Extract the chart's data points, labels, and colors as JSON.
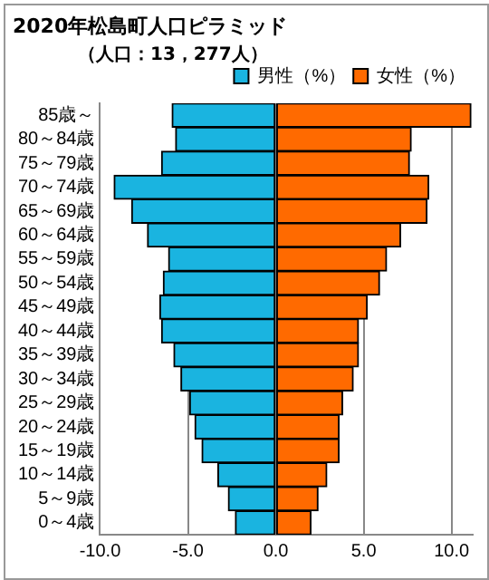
{
  "chart_data": {
    "type": "bar",
    "title": "2020年松島町人口ピラミッド",
    "subtitle": "（人口：13，277人）",
    "orientation": "horizontal",
    "stacked": true,
    "categories": [
      "85歳～",
      "80～84歳",
      "75～79歳",
      "70～74歳",
      "65～69歳",
      "60～64歳",
      "55～59歳",
      "50～54歳",
      "45～49歳",
      "40～44歳",
      "35～39歳",
      "30～34歳",
      "25～29歳",
      "20～24歳",
      "15～19歳",
      "10～14歳",
      "5～9歳",
      "0～4歳"
    ],
    "series": [
      {
        "name": "男性（%）",
        "color": "#1ab4e0",
        "values": [
          -5.9,
          -5.7,
          -6.5,
          -9.2,
          -8.2,
          -7.3,
          -6.1,
          -6.4,
          -6.6,
          -6.5,
          -5.8,
          -5.4,
          -4.9,
          -4.6,
          -4.2,
          -3.3,
          -2.7,
          -2.3
        ]
      },
      {
        "name": "女性（%）",
        "color": "#ff6a00",
        "values": [
          11.1,
          7.7,
          7.6,
          8.7,
          8.6,
          7.1,
          6.3,
          5.9,
          5.2,
          4.7,
          4.7,
          4.4,
          3.8,
          3.6,
          3.6,
          2.9,
          2.4,
          2.0
        ]
      }
    ],
    "xlim": [
      -10,
      11.2
    ],
    "xticks": [
      {
        "value": -10,
        "label": "-10.0"
      },
      {
        "value": -5,
        "label": "-5.0"
      },
      {
        "value": 0,
        "label": "0.0"
      },
      {
        "value": 5,
        "label": "5.0"
      },
      {
        "value": 10,
        "label": "10.0"
      }
    ],
    "grid": "x",
    "legend": "top right"
  }
}
